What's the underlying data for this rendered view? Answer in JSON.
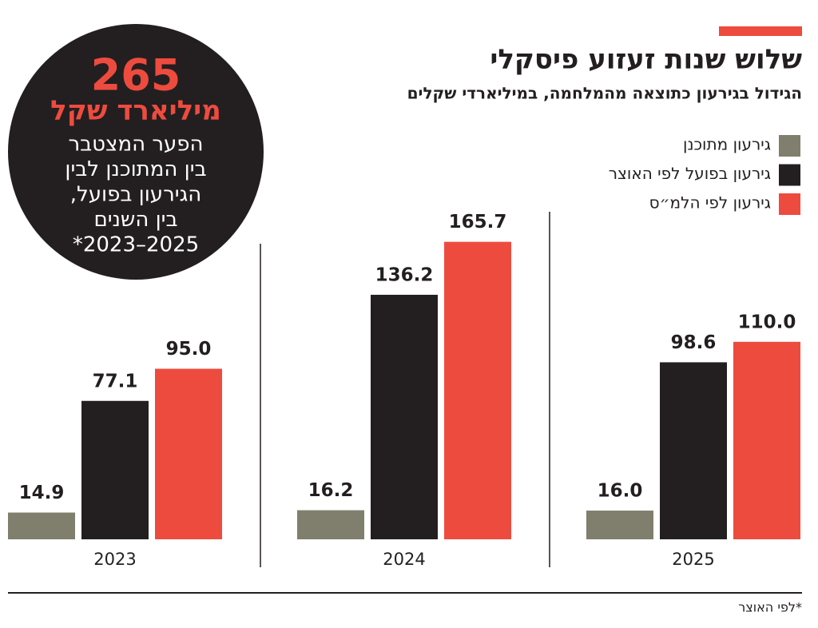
{
  "chart_data": {
    "type": "bar",
    "title": "שלוש שנות זעזוע פיסקלי",
    "subtitle": "הגידול בגירעון כתוצאה מהמלחמה, במיליארדי שקלים",
    "categories": [
      "2023",
      "2024",
      "2025"
    ],
    "series": [
      {
        "name": "גירעון מתוכנן",
        "color": "#807f6d",
        "values": [
          14.9,
          16.2,
          16.0
        ],
        "value_labels": [
          "14.9",
          "16.2",
          "16.0"
        ]
      },
      {
        "name": "גירעון בפועל לפי האוצר",
        "color": "#231f20",
        "values": [
          77.1,
          136.2,
          98.6
        ],
        "value_labels": [
          "77.1",
          "136.2",
          "98.6"
        ]
      },
      {
        "name": "גירעון לפי הלמ״ס",
        "color": "#ee4b3f",
        "values": [
          95.0,
          165.7,
          110.0
        ],
        "value_labels": [
          "95.0",
          "165.7",
          "110.0"
        ]
      }
    ],
    "ylim": [
      0,
      170
    ],
    "grid": false,
    "legend": "top-right",
    "callout": {
      "value": 265,
      "unit": "מיליארד שקל",
      "lines": [
        "הפער המצטבר",
        "בין המתוכנן לבין",
        "הגירעון בפועל,",
        "בין השנים",
        "2025–2023*"
      ]
    },
    "footnote": "*לפי האוצר"
  }
}
